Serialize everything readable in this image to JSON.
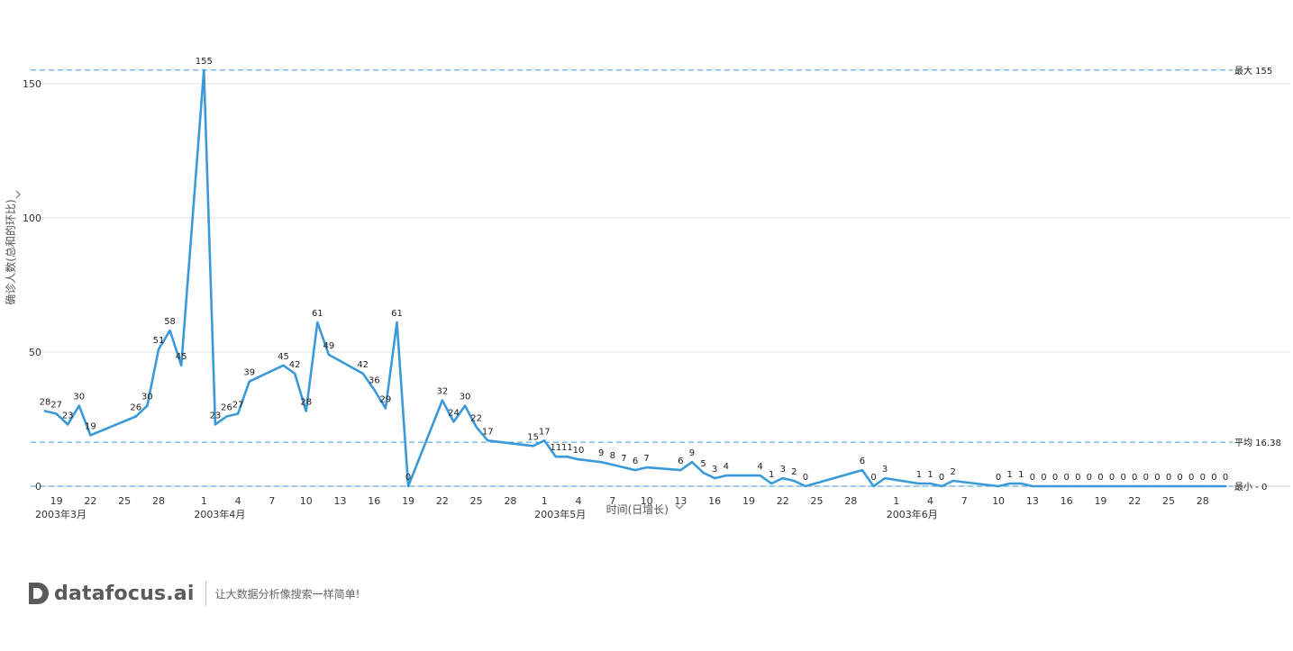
{
  "chart_data": {
    "type": "line",
    "xlabel": "时间(日增长)",
    "ylabel": "确诊人数(总和的环比)",
    "ylim": [
      0,
      160
    ],
    "yticks": [
      0,
      50,
      100,
      150
    ],
    "grid": true,
    "series_color": "#3a9ad9",
    "reference_lines": [
      {
        "label": "最大 155",
        "value": 155
      },
      {
        "label": "平均 16.38",
        "value": 16.38
      },
      {
        "label": "最小 - 0",
        "value": 0
      }
    ],
    "month_labels": [
      {
        "label": "2003年3月",
        "date": "2003-03-18"
      },
      {
        "label": "2003年4月",
        "date": "2003-04-01"
      },
      {
        "label": "2003年5月",
        "date": "2003-05-01"
      },
      {
        "label": "2003年6月",
        "date": "2003-06-01"
      }
    ],
    "x_ticks": [
      {
        "label": "19",
        "date": "2003-03-19"
      },
      {
        "label": "22",
        "date": "2003-03-22"
      },
      {
        "label": "25",
        "date": "2003-03-25"
      },
      {
        "label": "28",
        "date": "2003-03-28"
      },
      {
        "label": "1",
        "date": "2003-04-01"
      },
      {
        "label": "4",
        "date": "2003-04-04"
      },
      {
        "label": "7",
        "date": "2003-04-07"
      },
      {
        "label": "10",
        "date": "2003-04-10"
      },
      {
        "label": "13",
        "date": "2003-04-13"
      },
      {
        "label": "16",
        "date": "2003-04-16"
      },
      {
        "label": "19",
        "date": "2003-04-19"
      },
      {
        "label": "22",
        "date": "2003-04-22"
      },
      {
        "label": "25",
        "date": "2003-04-25"
      },
      {
        "label": "28",
        "date": "2003-04-28"
      },
      {
        "label": "1",
        "date": "2003-05-01"
      },
      {
        "label": "4",
        "date": "2003-05-04"
      },
      {
        "label": "7",
        "date": "2003-05-07"
      },
      {
        "label": "10",
        "date": "2003-05-10"
      },
      {
        "label": "13",
        "date": "2003-05-13"
      },
      {
        "label": "16",
        "date": "2003-05-16"
      },
      {
        "label": "19",
        "date": "2003-05-19"
      },
      {
        "label": "22",
        "date": "2003-05-22"
      },
      {
        "label": "25",
        "date": "2003-05-25"
      },
      {
        "label": "28",
        "date": "2003-05-28"
      },
      {
        "label": "1",
        "date": "2003-06-01"
      },
      {
        "label": "4",
        "date": "2003-06-04"
      },
      {
        "label": "7",
        "date": "2003-06-07"
      },
      {
        "label": "10",
        "date": "2003-06-10"
      },
      {
        "label": "13",
        "date": "2003-06-13"
      },
      {
        "label": "16",
        "date": "2003-06-16"
      },
      {
        "label": "19",
        "date": "2003-06-19"
      },
      {
        "label": "22",
        "date": "2003-06-22"
      },
      {
        "label": "25",
        "date": "2003-06-25"
      },
      {
        "label": "28",
        "date": "2003-06-28"
      }
    ],
    "points": [
      {
        "date": "2003-03-18",
        "y": 28
      },
      {
        "date": "2003-03-19",
        "y": 27
      },
      {
        "date": "2003-03-20",
        "y": 23
      },
      {
        "date": "2003-03-21",
        "y": 30
      },
      {
        "date": "2003-03-22",
        "y": 19
      },
      {
        "date": "2003-03-26",
        "y": 26
      },
      {
        "date": "2003-03-27",
        "y": 30
      },
      {
        "date": "2003-03-28",
        "y": 51
      },
      {
        "date": "2003-03-29",
        "y": 58
      },
      {
        "date": "2003-03-30",
        "y": 45
      },
      {
        "date": "2003-04-01",
        "y": 155
      },
      {
        "date": "2003-04-02",
        "y": 23
      },
      {
        "date": "2003-04-03",
        "y": 26
      },
      {
        "date": "2003-04-04",
        "y": 27
      },
      {
        "date": "2003-04-05",
        "y": 39
      },
      {
        "date": "2003-04-08",
        "y": 45
      },
      {
        "date": "2003-04-09",
        "y": 42
      },
      {
        "date": "2003-04-10",
        "y": 28
      },
      {
        "date": "2003-04-11",
        "y": 61
      },
      {
        "date": "2003-04-12",
        "y": 49
      },
      {
        "date": "2003-04-15",
        "y": 42
      },
      {
        "date": "2003-04-16",
        "y": 36
      },
      {
        "date": "2003-04-17",
        "y": 29
      },
      {
        "date": "2003-04-18",
        "y": 61
      },
      {
        "date": "2003-04-19",
        "y": 0
      },
      {
        "date": "2003-04-22",
        "y": 32
      },
      {
        "date": "2003-04-23",
        "y": 24
      },
      {
        "date": "2003-04-24",
        "y": 30
      },
      {
        "date": "2003-04-25",
        "y": 22
      },
      {
        "date": "2003-04-26",
        "y": 17
      },
      {
        "date": "2003-04-30",
        "y": 15
      },
      {
        "date": "2003-05-01",
        "y": 17
      },
      {
        "date": "2003-05-02",
        "y": 11
      },
      {
        "date": "2003-05-03",
        "y": 11
      },
      {
        "date": "2003-05-04",
        "y": 10
      },
      {
        "date": "2003-05-06",
        "y": 9
      },
      {
        "date": "2003-05-07",
        "y": 8
      },
      {
        "date": "2003-05-08",
        "y": 7
      },
      {
        "date": "2003-05-09",
        "y": 6
      },
      {
        "date": "2003-05-10",
        "y": 7
      },
      {
        "date": "2003-05-13",
        "y": 6
      },
      {
        "date": "2003-05-14",
        "y": 9
      },
      {
        "date": "2003-05-15",
        "y": 5
      },
      {
        "date": "2003-05-16",
        "y": 3
      },
      {
        "date": "2003-05-17",
        "y": 4
      },
      {
        "date": "2003-05-20",
        "y": 4
      },
      {
        "date": "2003-05-21",
        "y": 1
      },
      {
        "date": "2003-05-22",
        "y": 3
      },
      {
        "date": "2003-05-23",
        "y": 2
      },
      {
        "date": "2003-05-24",
        "y": 0
      },
      {
        "date": "2003-05-29",
        "y": 6
      },
      {
        "date": "2003-05-30",
        "y": 0
      },
      {
        "date": "2003-05-31",
        "y": 3
      },
      {
        "date": "2003-06-03",
        "y": 1
      },
      {
        "date": "2003-06-04",
        "y": 1
      },
      {
        "date": "2003-06-05",
        "y": 0
      },
      {
        "date": "2003-06-06",
        "y": 2
      },
      {
        "date": "2003-06-10",
        "y": 0
      },
      {
        "date": "2003-06-11",
        "y": 1
      },
      {
        "date": "2003-06-12",
        "y": 1
      },
      {
        "date": "2003-06-13",
        "y": 0
      },
      {
        "date": "2003-06-14",
        "y": 0
      },
      {
        "date": "2003-06-15",
        "y": 0
      },
      {
        "date": "2003-06-16",
        "y": 0
      },
      {
        "date": "2003-06-17",
        "y": 0
      },
      {
        "date": "2003-06-18",
        "y": 0
      },
      {
        "date": "2003-06-19",
        "y": 0
      },
      {
        "date": "2003-06-20",
        "y": 0
      },
      {
        "date": "2003-06-21",
        "y": 0
      },
      {
        "date": "2003-06-22",
        "y": 0
      },
      {
        "date": "2003-06-23",
        "y": 0
      },
      {
        "date": "2003-06-24",
        "y": 0
      },
      {
        "date": "2003-06-25",
        "y": 0
      },
      {
        "date": "2003-06-26",
        "y": 0
      },
      {
        "date": "2003-06-27",
        "y": 0
      },
      {
        "date": "2003-06-28",
        "y": 0
      },
      {
        "date": "2003-06-29",
        "y": 0
      },
      {
        "date": "2003-06-30",
        "y": 0
      }
    ]
  },
  "brand": {
    "name": "datafocus.ai",
    "tagline": "让大数据分析像搜索一样简单!"
  }
}
